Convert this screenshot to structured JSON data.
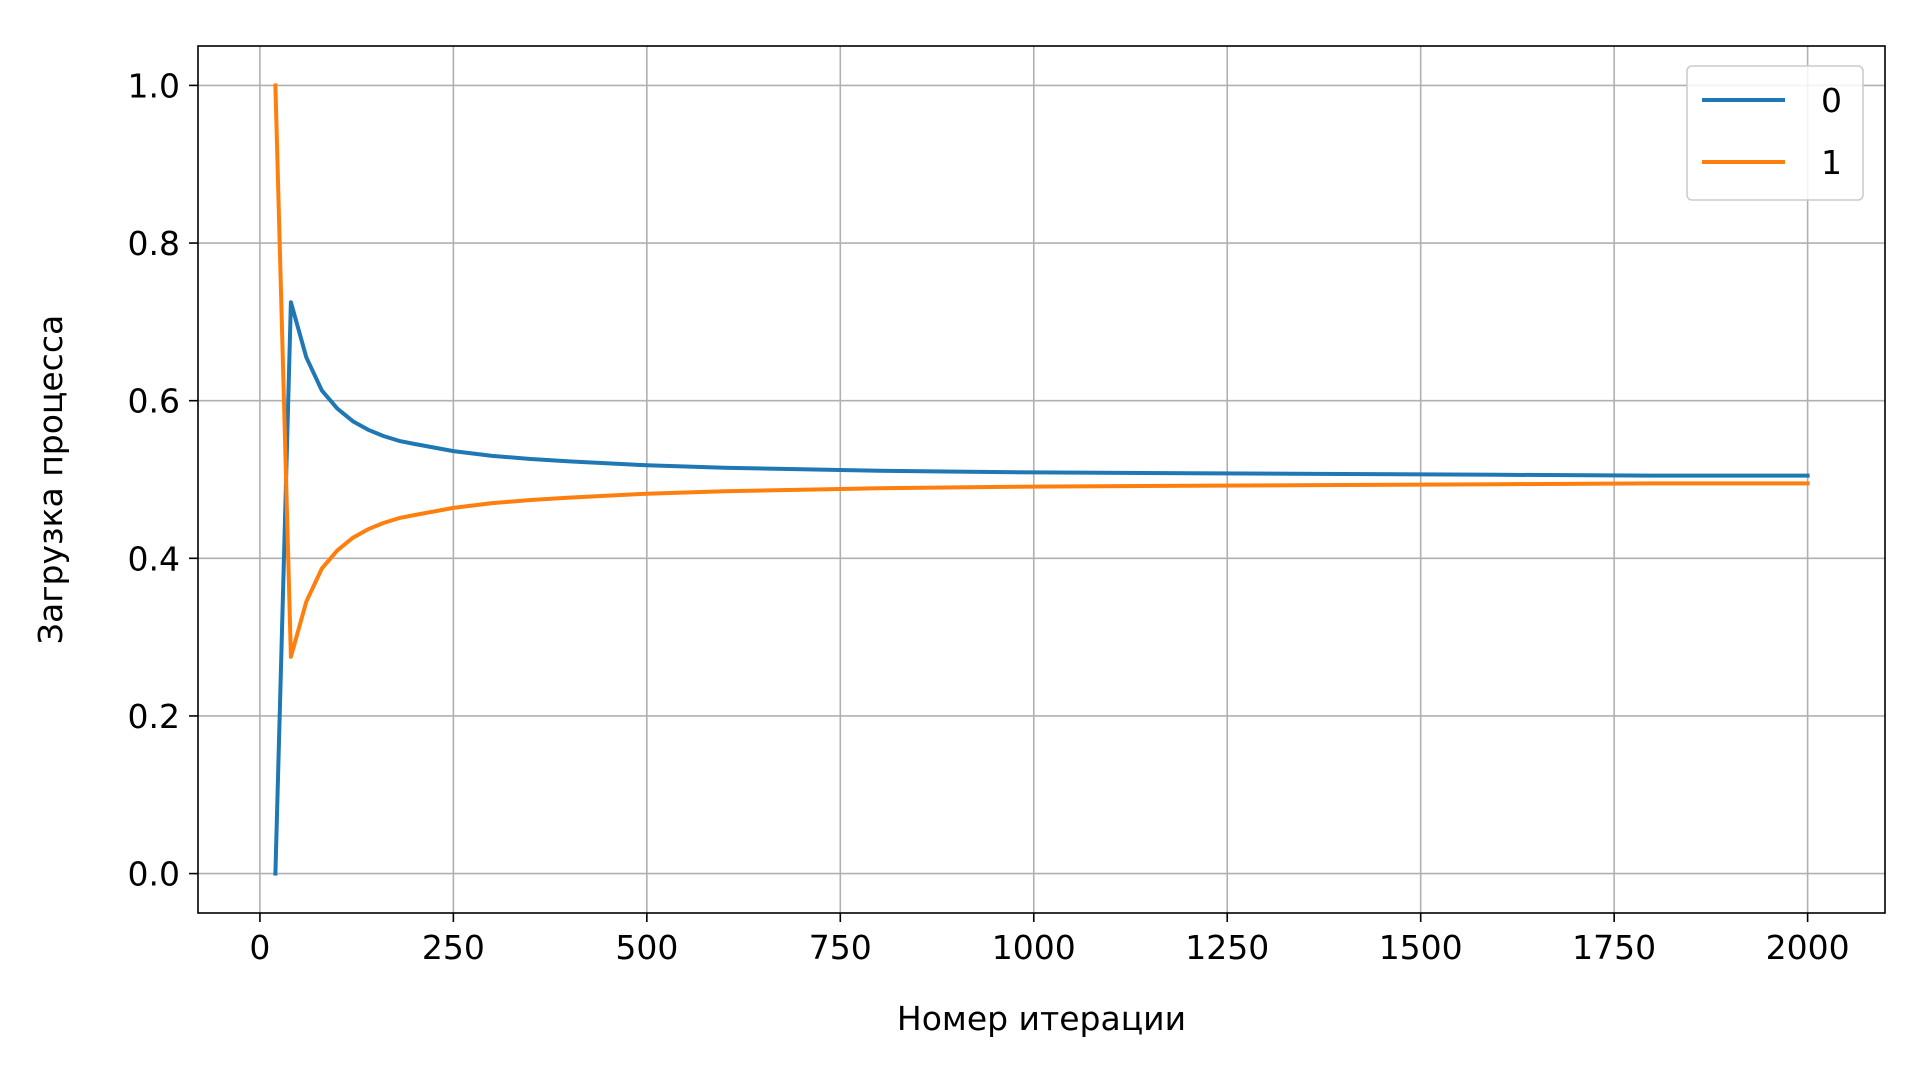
{
  "chart_data": {
    "type": "line",
    "title": "",
    "xlabel": "Номер итерации",
    "ylabel": "Загрузка процесса",
    "xlim": [
      -80,
      2100
    ],
    "ylim": [
      -0.05,
      1.05
    ],
    "xticks": [
      0,
      250,
      500,
      750,
      1000,
      1250,
      1500,
      1750,
      2000
    ],
    "xtick_labels": [
      "0",
      "250",
      "500",
      "750",
      "1000",
      "1250",
      "1500",
      "1750",
      "2000"
    ],
    "yticks": [
      0.0,
      0.2,
      0.4,
      0.6,
      0.8,
      1.0
    ],
    "ytick_labels": [
      "0.0",
      "0.2",
      "0.4",
      "0.6",
      "0.8",
      "1.0"
    ],
    "grid": true,
    "legend_position": "top-right",
    "x": [
      20,
      40,
      60,
      80,
      100,
      120,
      140,
      160,
      180,
      200,
      250,
      300,
      350,
      400,
      500,
      600,
      700,
      800,
      900,
      1000,
      1200,
      1400,
      1600,
      1800,
      2000
    ],
    "series": [
      {
        "name": "0",
        "color": "#1f77b4",
        "values": [
          0.0,
          0.725,
          0.655,
          0.613,
          0.59,
          0.574,
          0.563,
          0.555,
          0.549,
          0.545,
          0.536,
          0.53,
          0.526,
          0.523,
          0.518,
          0.515,
          0.513,
          0.511,
          0.51,
          0.509,
          0.508,
          0.507,
          0.506,
          0.505,
          0.505
        ]
      },
      {
        "name": "1",
        "color": "#ff7f0e",
        "values": [
          1.0,
          0.275,
          0.345,
          0.387,
          0.41,
          0.426,
          0.437,
          0.445,
          0.451,
          0.455,
          0.464,
          0.47,
          0.474,
          0.477,
          0.482,
          0.485,
          0.487,
          0.489,
          0.49,
          0.491,
          0.492,
          0.493,
          0.494,
          0.495,
          0.495
        ]
      }
    ]
  }
}
